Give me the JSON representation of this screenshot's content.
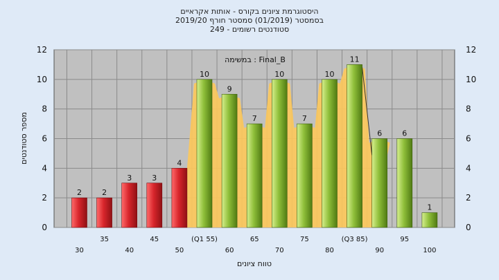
{
  "header": {
    "line1": "היסטוגרמת ציונים בקורס - אותות אקראיים",
    "line2": "בסמסטר  (01/2019)  סמסטר חורף 2019/20",
    "line3": "סטודנטים רשומים - 249"
  },
  "chart_data": {
    "type": "bar",
    "title": "היסטוגרמת ציונים בקורס - אותות אקראיים",
    "xlabel": "טווח ציונים",
    "ylabel": "מספר סטודנטים",
    "ylim": [
      0,
      12
    ],
    "yticks": [
      0,
      2,
      4,
      6,
      8,
      10,
      12
    ],
    "grid": true,
    "annotation": "במשימה : Final_B",
    "categories": [
      "30",
      "35",
      "40",
      "45",
      "50",
      "(Q1 55)",
      "60",
      "65",
      "70",
      "75",
      "80",
      "(Q3 85)",
      "90",
      "95",
      "100"
    ],
    "values": [
      2,
      2,
      3,
      3,
      4,
      10,
      9,
      7,
      10,
      7,
      10,
      11,
      6,
      6,
      1
    ],
    "colors": {
      "red_bars": "#d8262c",
      "green_bars": "#8fbf3a",
      "area_fill": "#fdc85a",
      "plot_bg": "#c0c0c0",
      "page_bg": "#dfeaf7"
    }
  }
}
